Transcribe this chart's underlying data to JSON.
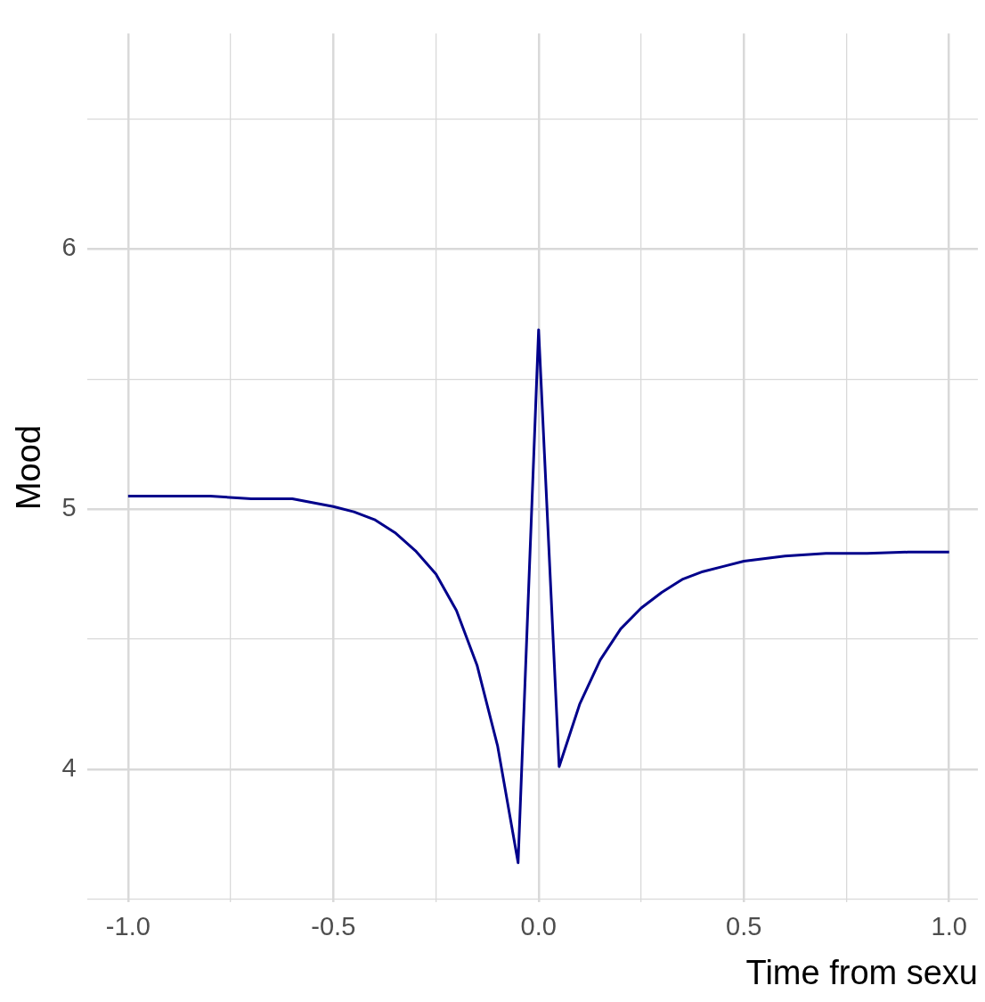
{
  "chart_data": {
    "type": "line",
    "xlabel": "Time from sexu",
    "ylabel": "Mood",
    "x": [
      -1,
      -0.9,
      -0.8,
      -0.7,
      -0.6,
      -0.5,
      -0.45,
      -0.4,
      -0.35,
      -0.3,
      -0.25,
      -0.2,
      -0.15,
      -0.1,
      -0.05,
      0,
      0.05,
      0.1,
      0.15,
      0.2,
      0.25,
      0.3,
      0.35,
      0.4,
      0.45,
      0.5,
      0.6,
      0.7,
      0.8,
      0.9,
      1
    ],
    "series": [
      {
        "color": "#00008b",
        "values": [
          5.05,
          5.05,
          5.05,
          5.04,
          5.04,
          5.01,
          4.99,
          4.96,
          4.91,
          4.84,
          4.75,
          4.61,
          4.4,
          4.09,
          3.64,
          5.69,
          4.01,
          4.25,
          4.42,
          4.54,
          4.62,
          4.68,
          4.73,
          4.76,
          4.78,
          4.8,
          4.82,
          4.83,
          4.83,
          4.835,
          4.835
        ]
      }
    ],
    "xlim": [
      -1.1,
      1.07
    ],
    "ylim": [
      3.49,
      6.83
    ],
    "xticks": [
      {
        "value": -1,
        "label": "-1.0"
      },
      {
        "value": -0.75,
        "label": null
      },
      -0.5,
      {
        "value": -0.25,
        "label": null
      },
      {
        "value": 0,
        "label": "0.0"
      },
      {
        "value": 0.25,
        "label": null
      },
      0.5,
      {
        "value": 0.75,
        "label": null
      },
      {
        "value": 1,
        "label": "1.0"
      }
    ],
    "yticks": [
      {
        "value": 3.5,
        "label": null
      },
      4,
      {
        "value": 4.5,
        "label": null
      },
      5,
      {
        "value": 5.5,
        "label": null
      },
      6,
      {
        "value": 6.5,
        "label": null
      }
    ],
    "grid": true,
    "legend": false,
    "marker": "none",
    "line_style": "solid"
  }
}
